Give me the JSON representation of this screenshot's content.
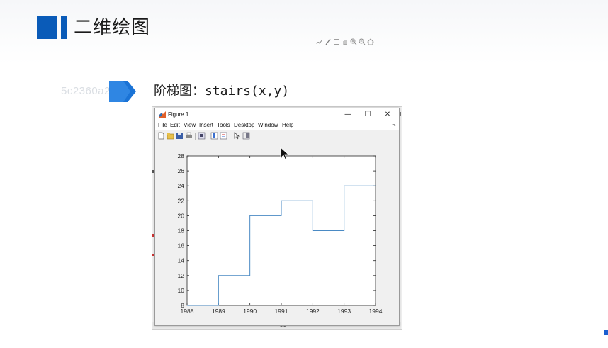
{
  "slide": {
    "title": "二维绘图",
    "subtitle": "阶梯图：stairs(x,y)",
    "watermark": "5c2360a2388a"
  },
  "figure_window": {
    "title": "Figure 1",
    "controls": {
      "minimize": "—",
      "maximize": "☐",
      "close": "✕"
    },
    "menu": [
      "File",
      "Edit",
      "View",
      "Insert",
      "Tools",
      "Desktop",
      "Window",
      "Help"
    ],
    "toolbar_icons": [
      "new-figure-icon",
      "open-icon",
      "save-icon",
      "print-icon",
      "link-plot-icon",
      "insert-colorbar-icon",
      "insert-legend-icon",
      "edit-plot-icon",
      "dock-icon"
    ],
    "axes_toolbar_icons": [
      "brush-icon",
      "data-cursor-icon",
      "pan-icon",
      "zoom-in-icon",
      "zoom-out-icon",
      "home-icon"
    ]
  },
  "command_prompt": ">>",
  "colors": {
    "accent": "#0a5bb8",
    "series": "#4a8ac4"
  },
  "chart_data": {
    "type": "line",
    "style": "stairs",
    "x": [
      1988,
      1989,
      1990,
      1991,
      1992,
      1993,
      1994
    ],
    "y": [
      8,
      12,
      20,
      22,
      18,
      24,
      24
    ],
    "xlim": [
      1988,
      1994
    ],
    "ylim": [
      8,
      28
    ],
    "xticks": [
      "1988",
      "1989",
      "1990",
      "1991",
      "1992",
      "1993",
      "1994"
    ],
    "yticks": [
      "8",
      "10",
      "12",
      "14",
      "16",
      "18",
      "20",
      "22",
      "24",
      "26",
      "28"
    ],
    "grid": false
  }
}
